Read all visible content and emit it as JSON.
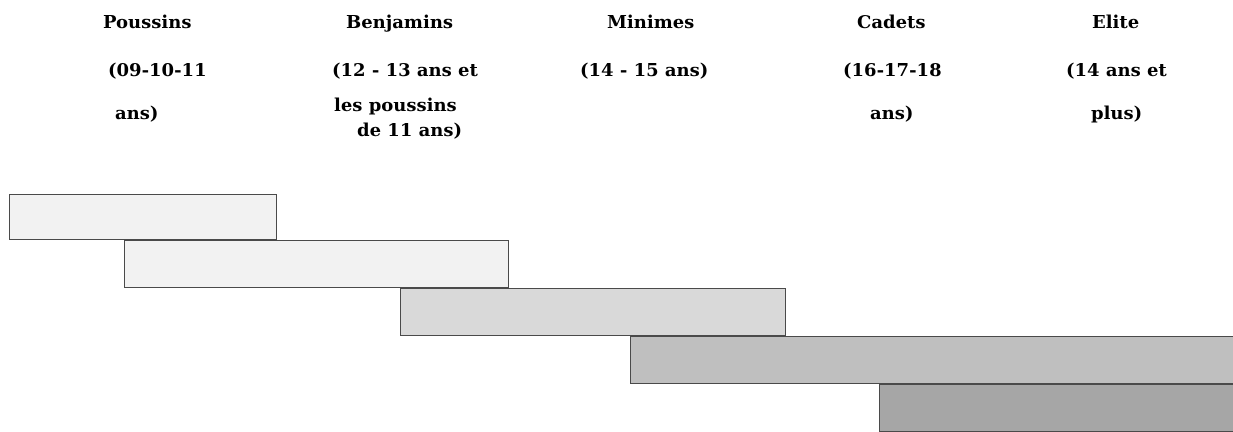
{
  "categories": [
    {
      "name": "Poussins",
      "age_lines": [
        "(09-10-11",
        "ans)"
      ],
      "bar_color": "#f2f2f2"
    },
    {
      "name": "Benjamins",
      "age_lines": [
        "(12 - 13 ans et",
        "les poussins",
        "de 11 ans)"
      ],
      "bar_color": "#f2f2f2"
    },
    {
      "name": "Minimes",
      "age_lines": [
        "(14 - 15 ans)"
      ],
      "bar_color": "#d9d9d9"
    },
    {
      "name": "Cadets",
      "age_lines": [
        "(16-17-18",
        "ans)"
      ],
      "bar_color": "#bfbfbf"
    },
    {
      "name": "Elite",
      "age_lines": [
        "(14 ans et",
        "plus)"
      ],
      "bar_color": "#a6a6a6"
    }
  ]
}
